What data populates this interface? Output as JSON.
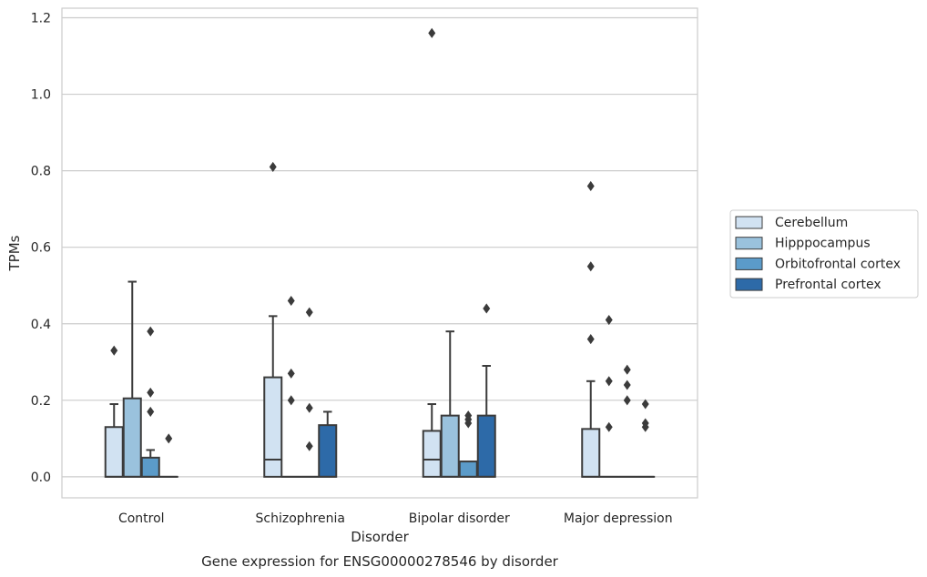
{
  "chart_data": {
    "type": "box",
    "caption": "Gene expression for ENSG00000278546 by disorder",
    "xlabel": "Disorder",
    "ylabel": "TPMs",
    "ylim": [
      -0.055,
      1.225
    ],
    "yticks": [
      "0.0",
      "0.2",
      "0.4",
      "0.6",
      "0.8",
      "1.0",
      "1.2"
    ],
    "grid": true,
    "legend_position": "right",
    "categories": [
      "Control",
      "Schizophrenia",
      "Bipolar disorder",
      "Major depression"
    ],
    "series": [
      {
        "name": "Cerebellum",
        "color": "#d1e2f2",
        "boxes": [
          {
            "q1": 0,
            "median": 0,
            "q3": 0.13,
            "whisker_low": 0,
            "whisker_high": 0.19,
            "outliers": [
              0.33
            ]
          },
          {
            "q1": 0,
            "median": 0.045,
            "q3": 0.26,
            "whisker_low": 0,
            "whisker_high": 0.42,
            "outliers": [
              0.81
            ]
          },
          {
            "q1": 0,
            "median": 0.045,
            "q3": 0.12,
            "whisker_low": 0,
            "whisker_high": 0.19,
            "outliers": [
              1.16
            ]
          },
          {
            "q1": 0,
            "median": 0,
            "q3": 0.125,
            "whisker_low": 0,
            "whisker_high": 0.25,
            "outliers": [
              0.76,
              0.55,
              0.36
            ]
          }
        ]
      },
      {
        "name": "Hipppocampus",
        "color": "#9ac2dd",
        "boxes": [
          {
            "q1": 0,
            "median": 0,
            "q3": 0.205,
            "whisker_low": 0,
            "whisker_high": 0.51,
            "outliers": []
          },
          {
            "q1": 0,
            "median": 0,
            "q3": 0,
            "whisker_low": 0,
            "whisker_high": 0,
            "outliers": [
              0.46,
              0.27,
              0.2
            ]
          },
          {
            "q1": 0,
            "median": 0,
            "q3": 0.16,
            "whisker_low": 0,
            "whisker_high": 0.38,
            "outliers": []
          },
          {
            "q1": 0,
            "median": 0,
            "q3": 0,
            "whisker_low": 0,
            "whisker_high": 0,
            "outliers": [
              0.41,
              0.25,
              0.13
            ]
          }
        ]
      },
      {
        "name": "Orbitofrontal cortex",
        "color": "#5b9bc9",
        "boxes": [
          {
            "q1": 0,
            "median": 0,
            "q3": 0.05,
            "whisker_low": 0,
            "whisker_high": 0.07,
            "outliers": [
              0.38,
              0.22,
              0.17
            ]
          },
          {
            "q1": 0,
            "median": 0,
            "q3": 0,
            "whisker_low": 0,
            "whisker_high": 0,
            "outliers": [
              0.43,
              0.18,
              0.08
            ]
          },
          {
            "q1": 0,
            "median": 0,
            "q3": 0.04,
            "whisker_low": 0,
            "whisker_high": 0.04,
            "outliers": [
              0.16,
              0.15,
              0.14
            ]
          },
          {
            "q1": 0,
            "median": 0,
            "q3": 0,
            "whisker_low": 0,
            "whisker_high": 0,
            "outliers": [
              0.28,
              0.24,
              0.2
            ]
          }
        ]
      },
      {
        "name": "Prefrontal cortex",
        "color": "#2d6aa8",
        "boxes": [
          {
            "q1": 0,
            "median": 0,
            "q3": 0,
            "whisker_low": 0,
            "whisker_high": 0,
            "outliers": [
              0.1
            ]
          },
          {
            "q1": 0,
            "median": 0,
            "q3": 0.135,
            "whisker_low": 0,
            "whisker_high": 0.17,
            "outliers": []
          },
          {
            "q1": 0,
            "median": 0,
            "q3": 0.16,
            "whisker_low": 0,
            "whisker_high": 0.29,
            "outliers": [
              0.44
            ]
          },
          {
            "q1": 0,
            "median": 0,
            "q3": 0,
            "whisker_low": 0,
            "whisker_high": 0,
            "outliers": [
              0.19,
              0.14,
              0.13
            ]
          }
        ]
      }
    ]
  }
}
